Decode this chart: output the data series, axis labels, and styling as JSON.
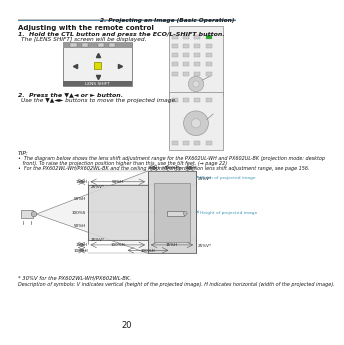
{
  "title_right": "2. Projecting an Image (Basic Operation)",
  "section_title": "Adjusting with the remote control",
  "step1_bold": "1.  Hold the CTL button and press the ECO/L-SHIFT button.",
  "step1_sub": "    The [LENS SHIFT] screen will be displayed.",
  "step2_bold": "2.  Press the ▼▲◄ or ► button.",
  "step2_sub": "    Use the ▼▲◄► buttons to move the projected image.",
  "tip_label": "TIP:",
  "tip1": "•  The diagram below shows the lens shift adjustment range for the PX602UL-WH and PX602UL-BK (projection mode: desktop",
  "tip1b": "   front). To raise the projection position higher than this, use the tilt feet. (→ page 22)",
  "tip2": "•  For the PX602WL-WH/PX602WL-BK and the ceiling mount/front projection lens shift adjustment range, see page 156.",
  "footnote1": "* 30%V for the PX602WL-WH/PX602WL-BK.",
  "footnote2": "Description of symbols: V indicates vertical (height of the projected image). H indicates horizontal (width of the projected image).",
  "page_num": "20",
  "bg_color": "#ffffff",
  "text_color": "#1a1a1a",
  "header_line_color": "#aaaaaa",
  "blue_label_color": "#4499bb",
  "diagram_gray": "#d8d8d8",
  "diagram_dark": "#555555",
  "diagram_inner": "#c0c0c0"
}
